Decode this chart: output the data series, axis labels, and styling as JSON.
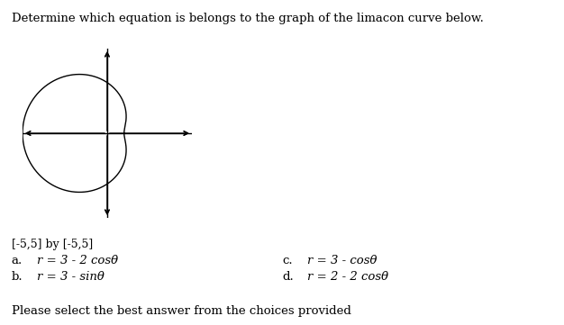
{
  "title": "Determine which equation is belongs to the graph of the limacon curve below.",
  "window_label": "[-5,5] by [-5,5]",
  "choices": [
    {
      "label": "a.",
      "eq": "r = 3 - 2 cosθ"
    },
    {
      "label": "b.",
      "eq": "r = 3 - sinθ"
    },
    {
      "label": "c.",
      "eq": "r = 3 - cosθ"
    },
    {
      "label": "d.",
      "eq": "r = 2 - 2 cosθ"
    }
  ],
  "footer": "Please select the best answer from the choices provided",
  "bg_color": "#ffffff",
  "text_color": "#000000",
  "curve_color": "#000000",
  "axis_color": "#000000",
  "fig_width": 6.26,
  "fig_height": 3.61,
  "dpi": 100
}
